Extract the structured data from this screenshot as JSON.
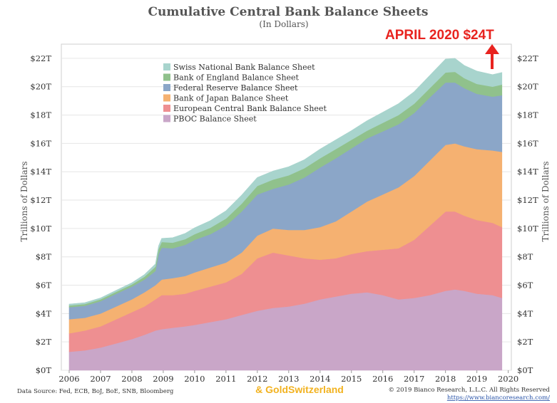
{
  "chart_data": {
    "type": "area",
    "stacked": true,
    "title": "Cumulative Central Bank Balance Sheets",
    "subtitle": "(In Dollars)",
    "ylabel": "Trillions of Dollars",
    "xlabel": "",
    "xlim": [
      2005.75,
      2020.1
    ],
    "ylim": [
      0,
      23
    ],
    "x_ticks": [
      "2006",
      "2007",
      "2008",
      "2009",
      "2010",
      "2011",
      "2012",
      "2013",
      "2014",
      "2015",
      "2016",
      "2017",
      "2018",
      "2019",
      "2020"
    ],
    "y_ticks": [
      "$0T",
      "$2T",
      "$4T",
      "$6T",
      "$8T",
      "$10T",
      "$12T",
      "$14T",
      "$16T",
      "$18T",
      "$20T",
      "$22T"
    ],
    "grid": true,
    "legend_position": "top-left",
    "x": [
      2006.0,
      2006.5,
      2007.0,
      2007.5,
      2008.0,
      2008.4,
      2008.75,
      2008.85,
      2008.95,
      2009.3,
      2009.7,
      2010.0,
      2010.5,
      2011.0,
      2011.5,
      2012.0,
      2012.5,
      2013.0,
      2013.5,
      2014.0,
      2014.5,
      2015.0,
      2015.5,
      2016.0,
      2016.5,
      2017.0,
      2017.5,
      2018.0,
      2018.3,
      2018.6,
      2019.0,
      2019.5,
      2019.8
    ],
    "series": [
      {
        "name": "PBOC Balance Sheet",
        "color": "#c9a6c8",
        "values": [
          1.3,
          1.4,
          1.6,
          1.9,
          2.2,
          2.5,
          2.8,
          2.85,
          2.9,
          3.0,
          3.1,
          3.2,
          3.4,
          3.6,
          3.9,
          4.2,
          4.4,
          4.5,
          4.7,
          5.0,
          5.2,
          5.4,
          5.5,
          5.3,
          5.0,
          5.1,
          5.3,
          5.6,
          5.7,
          5.6,
          5.4,
          5.3,
          5.1
        ]
      },
      {
        "name": "European Central Bank Balance Sheet",
        "color": "#ee8f91",
        "values": [
          1.3,
          1.4,
          1.5,
          1.7,
          1.9,
          2.0,
          2.2,
          2.3,
          2.4,
          2.3,
          2.3,
          2.4,
          2.5,
          2.6,
          2.9,
          3.7,
          3.9,
          3.6,
          3.2,
          2.8,
          2.7,
          2.8,
          2.9,
          3.2,
          3.6,
          4.1,
          4.9,
          5.6,
          5.5,
          5.3,
          5.2,
          5.1,
          5.0
        ]
      },
      {
        "name": "Bank of Japan Balance Sheet",
        "color": "#f5b171",
        "values": [
          1.0,
          0.9,
          0.9,
          0.9,
          0.9,
          1.0,
          1.0,
          1.05,
          1.1,
          1.2,
          1.25,
          1.3,
          1.35,
          1.4,
          1.5,
          1.6,
          1.7,
          1.8,
          2.0,
          2.3,
          2.6,
          3.0,
          3.5,
          3.9,
          4.3,
          4.5,
          4.6,
          4.7,
          4.8,
          4.9,
          5.0,
          5.1,
          5.3
        ]
      },
      {
        "name": "Federal Reserve Balance Sheet",
        "color": "#8ba6c8",
        "values": [
          0.85,
          0.85,
          0.87,
          0.9,
          0.9,
          0.9,
          1.0,
          2.0,
          2.25,
          2.1,
          2.2,
          2.3,
          2.35,
          2.6,
          2.9,
          2.9,
          2.8,
          3.2,
          3.7,
          4.2,
          4.45,
          4.45,
          4.45,
          4.45,
          4.45,
          4.45,
          4.45,
          4.4,
          4.3,
          4.1,
          3.9,
          3.8,
          4.0
        ]
      },
      {
        "name": "Bank of England Balance Sheet",
        "color": "#90c18c",
        "values": [
          0.12,
          0.12,
          0.13,
          0.14,
          0.15,
          0.2,
          0.3,
          0.35,
          0.4,
          0.4,
          0.4,
          0.4,
          0.45,
          0.5,
          0.55,
          0.6,
          0.65,
          0.65,
          0.65,
          0.65,
          0.65,
          0.6,
          0.55,
          0.6,
          0.65,
          0.65,
          0.65,
          0.7,
          0.75,
          0.7,
          0.7,
          0.7,
          0.75
        ]
      },
      {
        "name": "Swiss National Bank Balance Sheet",
        "color": "#a8d4cd",
        "values": [
          0.1,
          0.1,
          0.1,
          0.1,
          0.12,
          0.15,
          0.2,
          0.22,
          0.25,
          0.35,
          0.4,
          0.45,
          0.5,
          0.55,
          0.6,
          0.6,
          0.6,
          0.6,
          0.6,
          0.65,
          0.65,
          0.65,
          0.7,
          0.75,
          0.8,
          0.85,
          0.9,
          0.95,
          0.95,
          0.9,
          0.9,
          0.85,
          0.85
        ]
      }
    ],
    "annotations": [
      {
        "text": "APRIL 2020 $24T",
        "color": "#e8231f"
      }
    ]
  },
  "watermark": "& GoldSwitzerland",
  "footer": {
    "source": "Data Source: Fed, ECB, BoJ, BoE, SNB, Bloomberg",
    "copyright": "© 2019 Bianco Research, L.L.C. All Rights Reserved",
    "url": "https://www.biancoresearch.com/"
  }
}
